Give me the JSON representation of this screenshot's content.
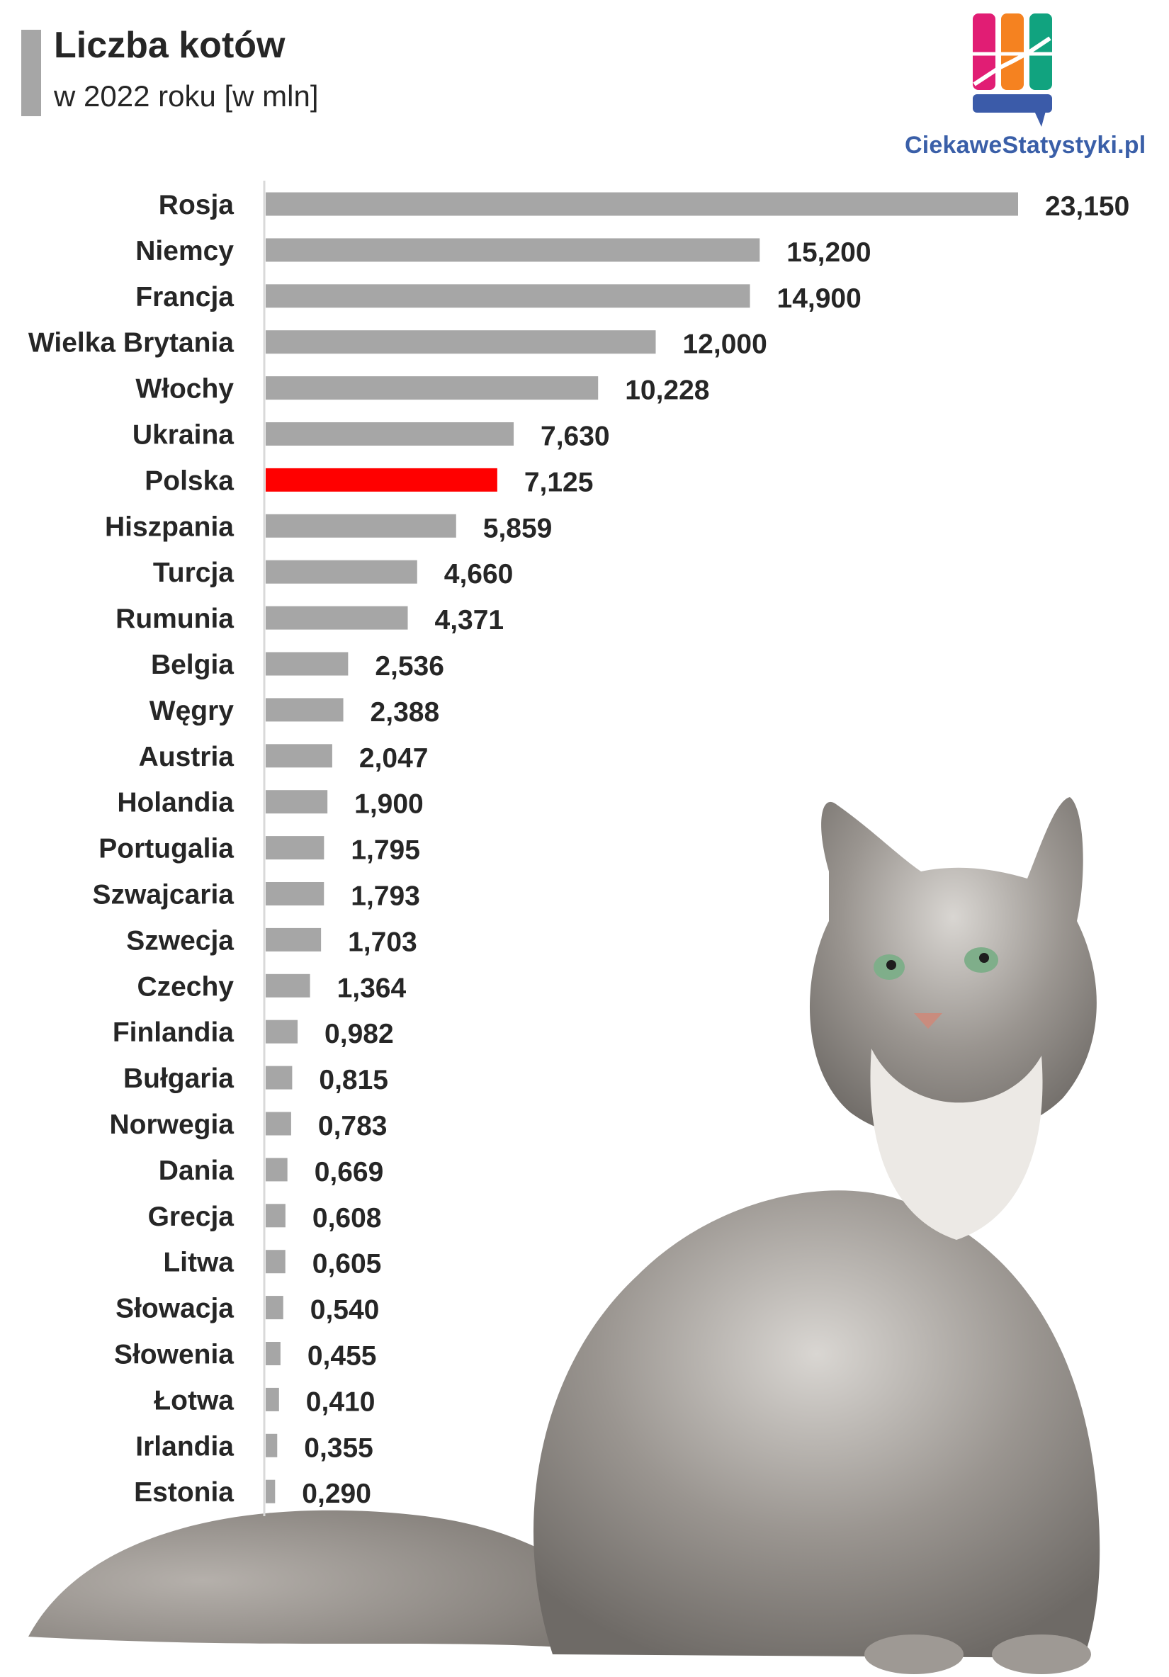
{
  "header": {
    "title": "Liczba kotów",
    "subtitle": "w 2022 roku [w mln]"
  },
  "brand": {
    "name": "CiekaweStatystyki.pl",
    "colors": [
      "#e11d74",
      "#f58220",
      "#11a37f",
      "#3b5ba9"
    ]
  },
  "picture": {
    "icon": "cat-photo-icon"
  },
  "chart_data": {
    "type": "bar",
    "orientation": "horizontal",
    "title": "Liczba kotów",
    "subtitle": "w 2022 roku [w mln]",
    "categories": [
      "Rosja",
      "Niemcy",
      "Francja",
      "Wielka Brytania",
      "Włochy",
      "Ukraina",
      "Polska",
      "Hiszpania",
      "Turcja",
      "Rumunia",
      "Belgia",
      "Węgry",
      "Austria",
      "Holandia",
      "Portugalia",
      "Szwajcaria",
      "Szwecja",
      "Czechy",
      "Finlandia",
      "Bułgaria",
      "Norwegia",
      "Dania",
      "Grecja",
      "Litwa",
      "Słowacja",
      "Słowenia",
      "Łotwa",
      "Irlandia",
      "Estonia"
    ],
    "values": [
      23.15,
      15.2,
      14.9,
      12.0,
      10.228,
      7.63,
      7.125,
      5.859,
      4.66,
      4.371,
      2.536,
      2.388,
      2.047,
      1.9,
      1.795,
      1.793,
      1.703,
      1.364,
      0.982,
      0.815,
      0.783,
      0.669,
      0.608,
      0.605,
      0.54,
      0.455,
      0.41,
      0.355,
      0.29
    ],
    "value_labels": [
      "23,150",
      "15,200",
      "14,900",
      "12,000",
      "10,228",
      "7,630",
      "7,125",
      "5,859",
      "4,660",
      "4,371",
      "2,536",
      "2,388",
      "2,047",
      "1,900",
      "1,795",
      "1,793",
      "1,703",
      "1,364",
      "0,982",
      "0,815",
      "0,783",
      "0,669",
      "0,608",
      "0,605",
      "0,540",
      "0,455",
      "0,410",
      "0,355",
      "0,290"
    ],
    "bar_color": "#a6a6a6",
    "highlight_color": "#ff0000",
    "highlight_category": "Polska",
    "xlim": [
      0,
      23.15
    ],
    "grid": false,
    "legend": "none"
  }
}
